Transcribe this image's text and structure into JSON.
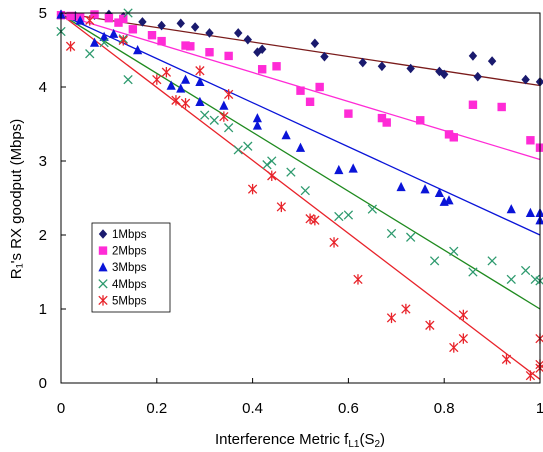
{
  "chart_data": {
    "type": "scatter",
    "xlabel": "Interference Metric f",
    "xlabel_sub": "L1",
    "xlabel_paren": "(S",
    "xlabel_paren_sub": "2",
    "xlabel_close": ")",
    "ylabel": "R₁'s RX goodput (Mbps)",
    "xlim": [
      0,
      1
    ],
    "ylim": [
      0,
      5
    ],
    "x_ticks": [
      0,
      0.2,
      0.4,
      0.6,
      0.8,
      1
    ],
    "x_tick_labels": [
      "0",
      "0.2",
      "0.4",
      "0.6",
      "0.8",
      "1"
    ],
    "y_ticks": [
      0,
      1,
      2,
      3,
      4,
      5
    ],
    "y_tick_labels": [
      "0",
      "1",
      "2",
      "3",
      "4",
      "5"
    ],
    "grid": false,
    "legend_position": "left",
    "series": [
      {
        "name": "1Mbps",
        "color": "#1a1a6e",
        "line_color": "#7a1b1b",
        "marker": "diamond",
        "fit": [
          [
            0,
            5.0
          ],
          [
            1,
            4.02
          ]
        ],
        "points": [
          [
            0.0,
            4.98
          ],
          [
            0.03,
            4.96
          ],
          [
            0.07,
            4.97
          ],
          [
            0.1,
            4.98
          ],
          [
            0.13,
            4.95
          ],
          [
            0.17,
            4.88
          ],
          [
            0.21,
            4.83
          ],
          [
            0.25,
            4.86
          ],
          [
            0.28,
            4.81
          ],
          [
            0.31,
            4.73
          ],
          [
            0.37,
            4.73
          ],
          [
            0.39,
            4.64
          ],
          [
            0.41,
            4.47
          ],
          [
            0.42,
            4.51
          ],
          [
            0.53,
            4.59
          ],
          [
            0.55,
            4.41
          ],
          [
            0.63,
            4.33
          ],
          [
            0.67,
            4.28
          ],
          [
            0.73,
            4.25
          ],
          [
            0.79,
            4.21
          ],
          [
            0.8,
            4.17
          ],
          [
            0.86,
            4.42
          ],
          [
            0.87,
            4.14
          ],
          [
            0.9,
            4.35
          ],
          [
            0.97,
            4.1
          ],
          [
            1.0,
            4.07
          ]
        ]
      },
      {
        "name": "2Mbps",
        "color": "#ff2bd6",
        "line_color": "#ff2bd6",
        "marker": "square",
        "fit": [
          [
            0,
            4.98
          ],
          [
            1,
            3.02
          ]
        ],
        "points": [
          [
            0.0,
            4.97
          ],
          [
            0.02,
            4.96
          ],
          [
            0.04,
            4.95
          ],
          [
            0.07,
            4.98
          ],
          [
            0.1,
            4.93
          ],
          [
            0.12,
            4.87
          ],
          [
            0.13,
            4.92
          ],
          [
            0.15,
            4.78
          ],
          [
            0.19,
            4.7
          ],
          [
            0.21,
            4.62
          ],
          [
            0.26,
            4.56
          ],
          [
            0.27,
            4.55
          ],
          [
            0.31,
            4.47
          ],
          [
            0.35,
            4.42
          ],
          [
            0.42,
            4.24
          ],
          [
            0.45,
            4.28
          ],
          [
            0.5,
            3.95
          ],
          [
            0.52,
            3.8
          ],
          [
            0.54,
            4.0
          ],
          [
            0.6,
            3.64
          ],
          [
            0.67,
            3.58
          ],
          [
            0.68,
            3.52
          ],
          [
            0.75,
            3.55
          ],
          [
            0.81,
            3.36
          ],
          [
            0.82,
            3.32
          ],
          [
            0.86,
            3.76
          ],
          [
            0.92,
            3.73
          ],
          [
            0.98,
            3.28
          ],
          [
            1.0,
            3.18
          ]
        ]
      },
      {
        "name": "3Mbps",
        "color": "#0a14d8",
        "line_color": "#0a14d8",
        "marker": "triangle",
        "fit": [
          [
            0,
            4.98
          ],
          [
            1,
            2.0
          ]
        ],
        "points": [
          [
            0.0,
            4.98
          ],
          [
            0.04,
            4.9
          ],
          [
            0.07,
            4.6
          ],
          [
            0.09,
            4.68
          ],
          [
            0.11,
            4.72
          ],
          [
            0.16,
            4.5
          ],
          [
            0.23,
            4.02
          ],
          [
            0.25,
            3.98
          ],
          [
            0.26,
            4.1
          ],
          [
            0.29,
            4.07
          ],
          [
            0.29,
            3.8
          ],
          [
            0.34,
            3.75
          ],
          [
            0.41,
            3.58
          ],
          [
            0.41,
            3.48
          ],
          [
            0.47,
            3.35
          ],
          [
            0.5,
            3.18
          ],
          [
            0.58,
            2.88
          ],
          [
            0.61,
            2.9
          ],
          [
            0.71,
            2.65
          ],
          [
            0.76,
            2.62
          ],
          [
            0.79,
            2.57
          ],
          [
            0.8,
            2.45
          ],
          [
            0.81,
            2.47
          ],
          [
            0.94,
            2.35
          ],
          [
            0.98,
            2.3
          ],
          [
            1.0,
            2.2
          ],
          [
            1.0,
            2.3
          ]
        ]
      },
      {
        "name": "4Mbps",
        "color": "#2e9a6e",
        "line_color": "#1f8a1f",
        "marker": "x",
        "fit": [
          [
            0,
            4.98
          ],
          [
            1,
            1.0
          ]
        ],
        "points": [
          [
            0.0,
            4.75
          ],
          [
            0.06,
            4.45
          ],
          [
            0.09,
            4.6
          ],
          [
            0.13,
            4.65
          ],
          [
            0.14,
            5.0
          ],
          [
            0.14,
            4.1
          ],
          [
            0.3,
            3.62
          ],
          [
            0.32,
            3.55
          ],
          [
            0.35,
            3.45
          ],
          [
            0.37,
            3.15
          ],
          [
            0.39,
            3.2
          ],
          [
            0.43,
            2.95
          ],
          [
            0.44,
            3.0
          ],
          [
            0.48,
            2.85
          ],
          [
            0.51,
            2.6
          ],
          [
            0.58,
            2.25
          ],
          [
            0.6,
            2.27
          ],
          [
            0.65,
            2.35
          ],
          [
            0.69,
            2.02
          ],
          [
            0.73,
            1.97
          ],
          [
            0.78,
            1.65
          ],
          [
            0.82,
            1.78
          ],
          [
            0.86,
            1.5
          ],
          [
            0.9,
            1.65
          ],
          [
            0.94,
            1.4
          ],
          [
            0.97,
            1.52
          ],
          [
            0.99,
            1.4
          ],
          [
            1.0,
            1.38
          ]
        ]
      },
      {
        "name": "5Mbps",
        "color": "#e8232a",
        "line_color": "#e8232a",
        "marker": "star",
        "fit": [
          [
            0,
            4.98
          ],
          [
            1,
            0.05
          ]
        ],
        "points": [
          [
            0.02,
            4.55
          ],
          [
            0.06,
            4.9
          ],
          [
            0.13,
            4.63
          ],
          [
            0.2,
            4.1
          ],
          [
            0.22,
            4.2
          ],
          [
            0.24,
            3.82
          ],
          [
            0.26,
            3.78
          ],
          [
            0.29,
            4.22
          ],
          [
            0.34,
            3.6
          ],
          [
            0.35,
            3.9
          ],
          [
            0.4,
            2.62
          ],
          [
            0.44,
            2.8
          ],
          [
            0.46,
            2.38
          ],
          [
            0.52,
            2.22
          ],
          [
            0.53,
            2.2
          ],
          [
            0.57,
            1.9
          ],
          [
            0.62,
            1.4
          ],
          [
            0.69,
            0.88
          ],
          [
            0.72,
            1.0
          ],
          [
            0.77,
            0.78
          ],
          [
            0.82,
            0.48
          ],
          [
            0.84,
            0.92
          ],
          [
            0.84,
            0.6
          ],
          [
            0.93,
            0.32
          ],
          [
            0.98,
            0.1
          ],
          [
            1.0,
            0.2
          ],
          [
            1.0,
            0.6
          ],
          [
            1.0,
            0.25
          ]
        ]
      }
    ]
  }
}
